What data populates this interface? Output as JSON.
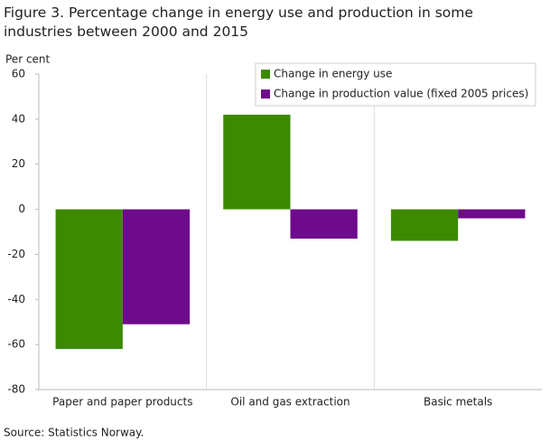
{
  "chart_data": {
    "type": "bar",
    "title": "Figure 3. Percentage change in energy use and production in some industries between 2000 and 2015",
    "y_label": "Per cent",
    "source": "Source: Statistics Norway.",
    "categories": [
      "Paper and paper products",
      "Oil and gas extraction",
      "Basic metals"
    ],
    "series": [
      {
        "name": "Change in energy use",
        "color": "#3d8a00",
        "values": [
          -62,
          42,
          -14
        ]
      },
      {
        "name": "Change in production value (fixed 2005 prices)",
        "color": "#6e0a8c",
        "values": [
          -51,
          -13,
          -4
        ]
      }
    ],
    "ylim": [
      -80,
      60
    ],
    "yticks": [
      -80,
      -60,
      -40,
      -20,
      0,
      20,
      40,
      60
    ],
    "grid": false,
    "legend_position": "top-right"
  }
}
